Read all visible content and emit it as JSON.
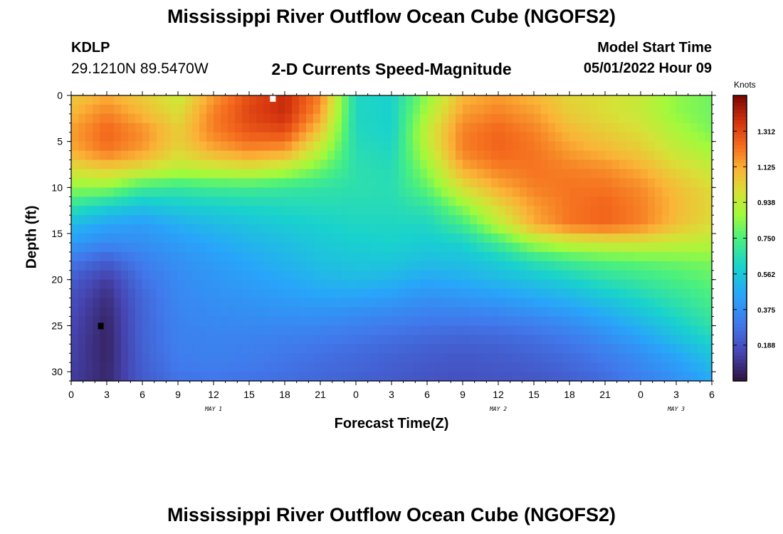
{
  "header": {
    "title": "Mississippi River Outflow Ocean Cube (NGOFS2)",
    "station_id": "KDLP",
    "station_coords": "29.1210N  89.5470W",
    "subtitle": "2-D Currents Speed-Magnitude",
    "model_start_label": "Model Start Time",
    "model_start_value": "05/01/2022 Hour 09"
  },
  "footer": {
    "repeated_title": "Mississippi River Outflow Ocean Cube (NGOFS2)"
  },
  "chart_data": {
    "type": "heatmap",
    "title": "2-D Currents Speed-Magnitude",
    "xlabel": "Forecast Time(Z)",
    "ylabel": "Depth (ft)",
    "xlim": [
      0,
      54
    ],
    "ylim": [
      31,
      0
    ],
    "x_tick_values": [
      0,
      3,
      6,
      9,
      12,
      15,
      18,
      21,
      24,
      27,
      30,
      33,
      36,
      39,
      42,
      45,
      48,
      51,
      54
    ],
    "x_tick_labels": [
      "0",
      "3",
      "6",
      "9",
      "12",
      "15",
      "18",
      "21",
      "0",
      "3",
      "6",
      "9",
      "12",
      "15",
      "18",
      "21",
      "0",
      "3",
      "6"
    ],
    "y_ticks": [
      0,
      5,
      10,
      15,
      20,
      25,
      30
    ],
    "day_labels": [
      {
        "text": "MAY 1",
        "x": 12
      },
      {
        "text": "MAY 2",
        "x": 36
      },
      {
        "text": "MAY 3",
        "x": 51
      }
    ],
    "colorbar": {
      "units": "Knots",
      "min": 0.0,
      "max": 1.5,
      "tick_values": [
        0.188,
        0.375,
        0.562,
        0.75,
        0.938,
        1.125,
        1.312
      ],
      "tick_labels": [
        "0.188",
        "0.375",
        "0.562",
        "0.750",
        "0.938",
        "1.125",
        "1.312"
      ]
    },
    "grid": false,
    "markers": [
      {
        "x": 17,
        "y": 0.3,
        "color": "#ffffff"
      },
      {
        "x": 2.5,
        "y": 25,
        "color": "#000000"
      }
    ],
    "field_estimate": {
      "note_units": "knots, sampled at x (hours) and depth (ft)",
      "x": [
        0,
        3,
        6,
        9,
        12,
        15,
        18,
        21,
        24,
        27,
        30,
        33,
        36,
        39,
        42,
        45,
        48,
        51,
        54
      ],
      "depth": [
        0,
        2,
        4,
        6,
        8,
        10,
        12,
        14,
        16,
        18,
        20,
        22,
        24,
        26,
        28,
        30,
        31
      ],
      "speed": [
        [
          1.05,
          1.12,
          1.05,
          0.95,
          1.15,
          1.3,
          1.38,
          1.2,
          0.62,
          0.6,
          0.85,
          1.1,
          1.15,
          1.1,
          1.02,
          1.0,
          0.95,
          0.85,
          0.8
        ],
        [
          1.1,
          1.2,
          1.1,
          1.0,
          1.2,
          1.32,
          1.38,
          1.15,
          0.62,
          0.6,
          0.9,
          1.15,
          1.2,
          1.15,
          1.05,
          1.0,
          0.95,
          0.85,
          0.8
        ],
        [
          1.15,
          1.25,
          1.18,
          1.05,
          1.2,
          1.28,
          1.3,
          1.05,
          0.63,
          0.6,
          0.95,
          1.2,
          1.25,
          1.2,
          1.1,
          1.05,
          1.0,
          0.9,
          0.82
        ],
        [
          1.12,
          1.22,
          1.15,
          1.02,
          1.12,
          1.18,
          1.15,
          0.92,
          0.65,
          0.62,
          0.92,
          1.2,
          1.25,
          1.22,
          1.15,
          1.1,
          1.05,
          0.95,
          0.88
        ],
        [
          1.0,
          1.05,
          1.0,
          0.92,
          0.95,
          0.98,
          0.92,
          0.8,
          0.66,
          0.64,
          0.85,
          1.12,
          1.2,
          1.22,
          1.2,
          1.18,
          1.12,
          1.02,
          0.95
        ],
        [
          0.85,
          0.85,
          0.72,
          0.7,
          0.72,
          0.72,
          0.7,
          0.68,
          0.66,
          0.65,
          0.78,
          1.0,
          1.12,
          1.2,
          1.22,
          1.22,
          1.18,
          1.08,
          1.0
        ],
        [
          0.68,
          0.6,
          0.55,
          0.58,
          0.6,
          0.62,
          0.63,
          0.64,
          0.64,
          0.64,
          0.68,
          0.85,
          1.02,
          1.15,
          1.22,
          1.25,
          1.2,
          1.1,
          1.02
        ],
        [
          0.52,
          0.45,
          0.42,
          0.48,
          0.52,
          0.55,
          0.58,
          0.6,
          0.62,
          0.62,
          0.62,
          0.72,
          0.92,
          1.12,
          1.22,
          1.25,
          1.2,
          1.08,
          1.0
        ],
        [
          0.42,
          0.36,
          0.38,
          0.42,
          0.46,
          0.5,
          0.53,
          0.57,
          0.59,
          0.6,
          0.58,
          0.6,
          0.72,
          0.88,
          0.95,
          0.98,
          0.98,
          0.95,
          0.92
        ],
        [
          0.3,
          0.22,
          0.32,
          0.38,
          0.42,
          0.46,
          0.5,
          0.54,
          0.56,
          0.56,
          0.53,
          0.54,
          0.58,
          0.66,
          0.72,
          0.76,
          0.78,
          0.8,
          0.82
        ],
        [
          0.22,
          0.12,
          0.28,
          0.36,
          0.4,
          0.43,
          0.46,
          0.5,
          0.52,
          0.5,
          0.46,
          0.48,
          0.52,
          0.55,
          0.6,
          0.66,
          0.7,
          0.74,
          0.78
        ],
        [
          0.18,
          0.08,
          0.25,
          0.35,
          0.38,
          0.4,
          0.42,
          0.44,
          0.44,
          0.42,
          0.38,
          0.4,
          0.42,
          0.46,
          0.5,
          0.56,
          0.62,
          0.68,
          0.74
        ],
        [
          0.16,
          0.06,
          0.24,
          0.34,
          0.36,
          0.37,
          0.38,
          0.38,
          0.36,
          0.34,
          0.32,
          0.32,
          0.33,
          0.36,
          0.4,
          0.46,
          0.54,
          0.62,
          0.7
        ],
        [
          0.15,
          0.05,
          0.24,
          0.33,
          0.34,
          0.34,
          0.33,
          0.32,
          0.3,
          0.28,
          0.26,
          0.25,
          0.26,
          0.28,
          0.32,
          0.38,
          0.45,
          0.55,
          0.64
        ],
        [
          0.14,
          0.05,
          0.23,
          0.32,
          0.33,
          0.32,
          0.3,
          0.28,
          0.26,
          0.24,
          0.22,
          0.21,
          0.22,
          0.24,
          0.27,
          0.32,
          0.38,
          0.46,
          0.56
        ],
        [
          0.13,
          0.06,
          0.22,
          0.3,
          0.31,
          0.3,
          0.28,
          0.26,
          0.24,
          0.22,
          0.2,
          0.19,
          0.2,
          0.21,
          0.24,
          0.28,
          0.34,
          0.4,
          0.5
        ],
        [
          0.12,
          0.06,
          0.21,
          0.28,
          0.29,
          0.28,
          0.27,
          0.25,
          0.23,
          0.21,
          0.19,
          0.18,
          0.19,
          0.2,
          0.22,
          0.26,
          0.32,
          0.38,
          0.46
        ]
      ]
    }
  }
}
